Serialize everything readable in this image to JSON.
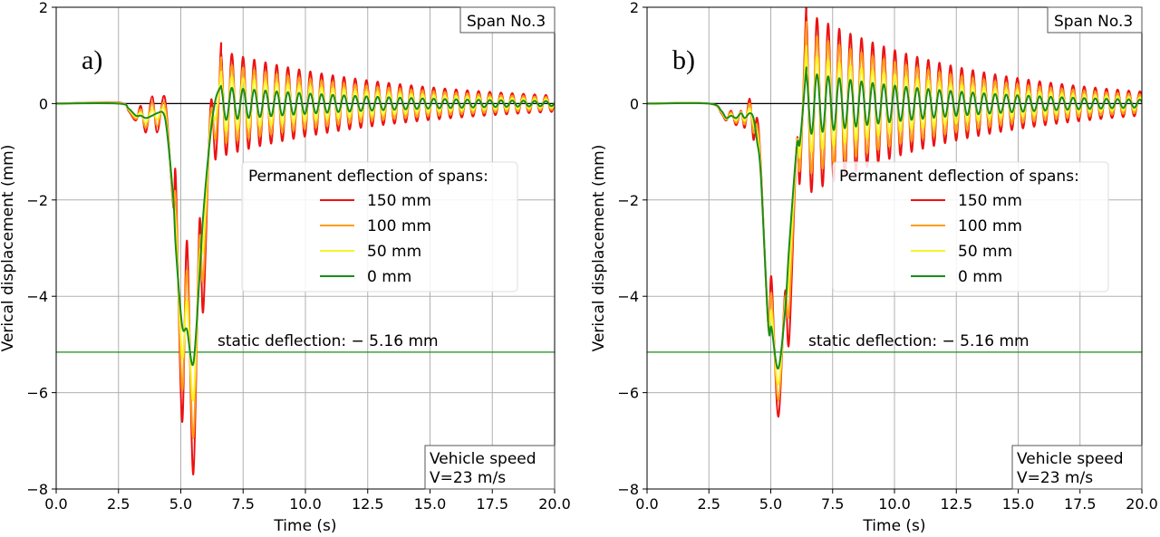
{
  "chart_data": [
    {
      "type": "line",
      "panel_label": "a)",
      "xlabel": "Time (s)",
      "ylabel": "Verical displacement (mm)",
      "xlim": [
        0,
        20
      ],
      "ylim": [
        -8,
        2
      ],
      "xticks": [
        "0.0",
        "2.5",
        "5.0",
        "7.5",
        "10.0",
        "12.5",
        "15.0",
        "17.5",
        "20.0"
      ],
      "yticks": [
        "2",
        "0",
        "−2",
        "−4",
        "−6",
        "−8"
      ],
      "grid": true,
      "span_label": "Span No.3",
      "speed_label": [
        "Vehicle speed",
        "V=23 m/s"
      ],
      "static_label": "static deflection: − 5.16 mm",
      "static_value": -5.16,
      "legend_title": "Permanent deflection of spans:",
      "legend_placement": "center-right",
      "series": [
        {
          "name": "150 mm",
          "color": "#ee1111",
          "x": [
            0,
            2.5,
            2.9,
            3.2,
            3.4,
            3.6,
            3.85,
            4.05,
            4.3,
            4.45,
            4.7,
            4.8,
            5.05,
            5.25,
            5.5,
            5.75,
            5.9,
            6.2,
            6.4
          ],
          "y": [
            0,
            0.02,
            -0.15,
            -0.35,
            -0.05,
            -0.6,
            0.15,
            -0.6,
            0.15,
            -0.3,
            -2.15,
            -1.55,
            -6.6,
            -2.85,
            -7.7,
            -2.45,
            -4.3,
            0,
            -1.15
          ],
          "free_vibration": {
            "start": 6.6,
            "period": 0.45,
            "amplitude_start": 1.1,
            "amplitude_end": 0.17
          }
        },
        {
          "name": "100 mm",
          "color": "#ff9d1a",
          "x": [
            0,
            2.5,
            2.9,
            3.2,
            3.4,
            3.6,
            3.85,
            4.05,
            4.3,
            4.45,
            4.7,
            4.8,
            5.05,
            5.25,
            5.5,
            5.75,
            5.9,
            6.2,
            6.4
          ],
          "y": [
            0,
            0.01,
            -0.13,
            -0.32,
            -0.12,
            -0.5,
            0.02,
            -0.47,
            0.03,
            -0.4,
            -2.1,
            -2.03,
            -5.94,
            -3.46,
            -6.94,
            -2.83,
            -3.64,
            -0.2,
            -0.74
          ],
          "free_vibration": {
            "start": 6.6,
            "period": 0.45,
            "amplitude_start": 0.85,
            "amplitude_end": 0.13
          }
        },
        {
          "name": "50 mm",
          "color": "#f5f52a",
          "x": [
            0,
            2.5,
            2.9,
            3.2,
            3.4,
            3.6,
            3.85,
            4.05,
            4.3,
            4.45,
            4.7,
            4.8,
            5.05,
            5.25,
            5.5,
            5.75,
            5.9,
            6.2,
            6.4
          ],
          "y": [
            0,
            0.01,
            -0.12,
            -0.28,
            -0.18,
            -0.4,
            -0.12,
            -0.33,
            -0.08,
            -0.5,
            -2.05,
            -2.52,
            -5.26,
            -4.09,
            -6.16,
            -3.22,
            -2.96,
            -0.4,
            -0.31
          ],
          "free_vibration": {
            "start": 6.6,
            "period": 0.45,
            "amplitude_start": 0.6,
            "amplitude_end": 0.09
          }
        },
        {
          "name": "0 mm",
          "color": "#1a8c1a",
          "x": [
            0,
            2.5,
            2.9,
            3.2,
            3.4,
            3.6,
            3.85,
            4.05,
            4.3,
            4.45,
            4.7,
            4.8,
            5.05,
            5.25,
            5.5,
            5.75,
            5.9,
            6.2,
            6.4
          ],
          "y": [
            0,
            0,
            -0.1,
            -0.25,
            -0.25,
            -0.3,
            -0.25,
            -0.2,
            -0.2,
            -0.6,
            -2.0,
            -3.0,
            -4.6,
            -4.7,
            -5.4,
            -3.6,
            -2.3,
            -0.6,
            0.1
          ],
          "free_vibration": {
            "start": 6.6,
            "period": 0.45,
            "amplitude_start": 0.35,
            "amplitude_end": 0.05
          }
        }
      ]
    },
    {
      "type": "line",
      "panel_label": "b)",
      "xlabel": "Time (s)",
      "ylabel": "Verical displacement (mm)",
      "xlim": [
        0,
        20
      ],
      "ylim": [
        -8,
        2
      ],
      "xticks": [
        "0.0",
        "2.5",
        "5.0",
        "7.5",
        "10.0",
        "12.5",
        "15.0",
        "17.5",
        "20.0"
      ],
      "yticks": [
        "2",
        "0",
        "−2",
        "−4",
        "−6",
        "−8"
      ],
      "grid": true,
      "span_label": "Span No.3",
      "speed_label": [
        "Vehicle speed",
        "V=23 m/s"
      ],
      "static_label": "static deflection: − 5.16 mm",
      "static_value": -5.16,
      "legend_title": "Permanent deflection of spans:",
      "legend_placement": "center-right",
      "series": [
        {
          "name": "150 mm",
          "color": "#ee1111",
          "x": [
            0,
            2.5,
            3.0,
            3.2,
            3.4,
            3.6,
            3.8,
            3.95,
            4.15,
            4.3,
            4.45,
            4.6,
            4.9,
            5.03,
            5.3,
            5.58,
            5.74,
            6.05,
            6.18
          ],
          "y": [
            0,
            0,
            -0.2,
            -0.35,
            -0.15,
            -0.45,
            -0.15,
            -0.5,
            0.1,
            -0.75,
            -0.3,
            -1.3,
            -4.62,
            -3.62,
            -6.5,
            -3.9,
            -4.95,
            -0.8,
            -1.6
          ],
          "free_vibration": {
            "start": 6.42,
            "period": 0.45,
            "amplitude_start": 1.9,
            "amplitude_end": 0.25
          }
        },
        {
          "name": "100 mm",
          "color": "#ff9d1a",
          "x": [
            0,
            2.5,
            3.0,
            3.2,
            3.4,
            3.6,
            3.8,
            3.95,
            4.15,
            4.3,
            4.45,
            4.6,
            4.9,
            5.03,
            5.3,
            5.58,
            5.74,
            6.05,
            6.18
          ],
          "y": [
            0,
            0,
            -0.18,
            -0.33,
            -0.18,
            -0.4,
            -0.17,
            -0.43,
            0,
            -0.6,
            -0.46,
            -1.37,
            -4.61,
            -3.96,
            -6.17,
            -4.03,
            -4.31,
            -0.83,
            -1.34
          ],
          "free_vibration": {
            "start": 6.42,
            "period": 0.45,
            "amplitude_start": 1.5,
            "amplitude_end": 0.19
          }
        },
        {
          "name": "50 mm",
          "color": "#f5f52a",
          "x": [
            0,
            2.5,
            3.0,
            3.2,
            3.4,
            3.6,
            3.8,
            3.95,
            4.15,
            4.3,
            4.45,
            4.6,
            4.9,
            5.03,
            5.3,
            5.58,
            5.74,
            6.05,
            6.18
          ],
          "y": [
            0,
            0,
            -0.17,
            -0.32,
            -0.22,
            -0.35,
            -0.18,
            -0.36,
            -0.1,
            -0.45,
            -0.63,
            -1.43,
            -4.61,
            -4.31,
            -5.83,
            -4.17,
            -3.64,
            -0.86,
            -1.06
          ],
          "free_vibration": {
            "start": 6.42,
            "period": 0.45,
            "amplitude_start": 1.05,
            "amplitude_end": 0.13
          }
        },
        {
          "name": "0 mm",
          "color": "#1a8c1a",
          "x": [
            0,
            2.5,
            3.0,
            3.2,
            3.4,
            3.6,
            3.8,
            3.95,
            4.15,
            4.3,
            4.45,
            4.6,
            4.9,
            5.03,
            5.3,
            5.58,
            5.74,
            6.05,
            6.18
          ],
          "y": [
            0,
            0,
            -0.15,
            -0.3,
            -0.25,
            -0.3,
            -0.2,
            -0.3,
            -0.2,
            -0.3,
            -0.8,
            -1.5,
            -4.6,
            -4.65,
            -5.5,
            -4.3,
            -3.0,
            -0.9,
            -0.8
          ],
          "free_vibration": {
            "start": 6.42,
            "period": 0.45,
            "amplitude_start": 0.65,
            "amplitude_end": 0.08
          }
        }
      ]
    }
  ]
}
